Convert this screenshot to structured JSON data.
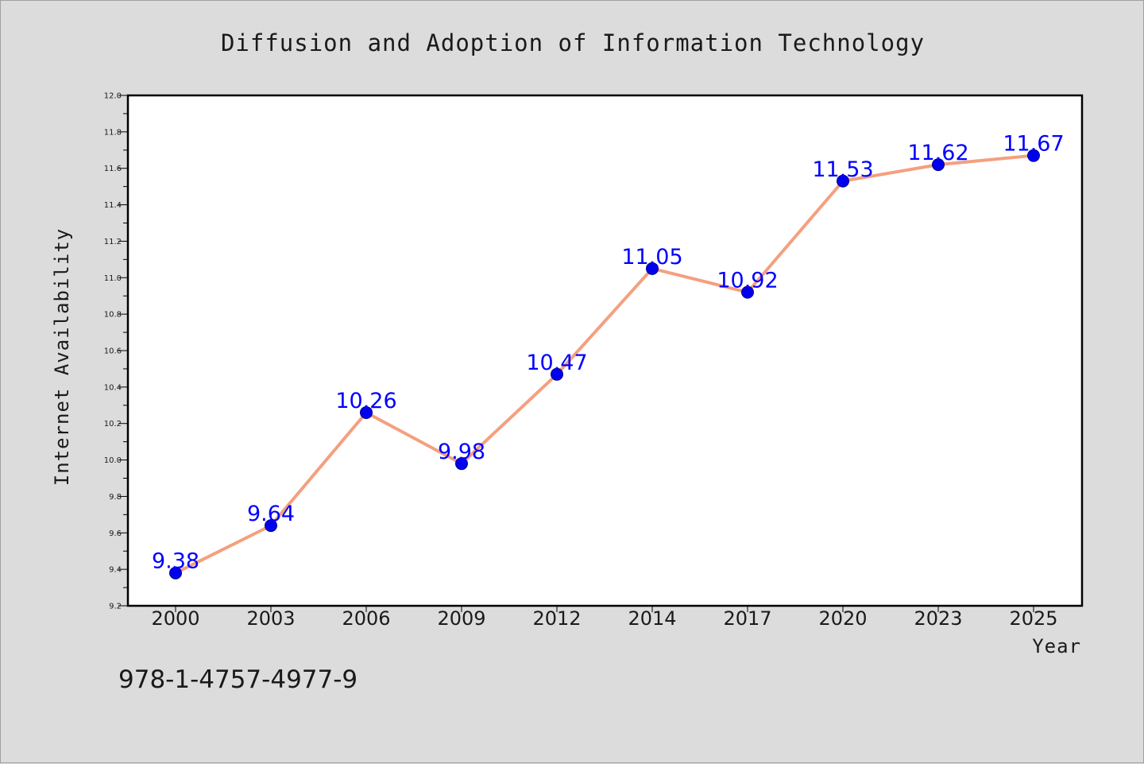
{
  "chart_data": {
    "type": "line",
    "title": "Diffusion and Adoption of Information Technology",
    "xlabel": "Year",
    "ylabel": "Internet Availability",
    "categories": [
      "2000",
      "2003",
      "2006",
      "2009",
      "2012",
      "2014",
      "2017",
      "2020",
      "2023",
      "2025"
    ],
    "series": [
      {
        "values": [
          9.38,
          9.64,
          10.26,
          9.98,
          10.47,
          11.05,
          10.92,
          11.53,
          11.62,
          11.67
        ]
      }
    ],
    "data_labels": [
      "9.38",
      "9.64",
      "10.26",
      "9.98",
      "10.47",
      "11.05",
      "10.92",
      "11.53",
      "11.62",
      "11.67"
    ],
    "ylim": [
      9.2,
      12.0
    ],
    "yticks": [
      "9.2",
      "9.4",
      "9.6",
      "9.8",
      "10.0",
      "10.2",
      "10.4",
      "10.6",
      "10.8",
      "11.0",
      "11.2",
      "11.4",
      "11.6",
      "11.8",
      "12.0"
    ],
    "grid": false,
    "colors": {
      "line": "#f4a07f",
      "marker": "#0000ee",
      "label": "#0000ff",
      "background": "#dcdcdc",
      "plot_background": "#ffffff"
    }
  },
  "footer": {
    "isbn": "978-1-4757-4977-9"
  }
}
